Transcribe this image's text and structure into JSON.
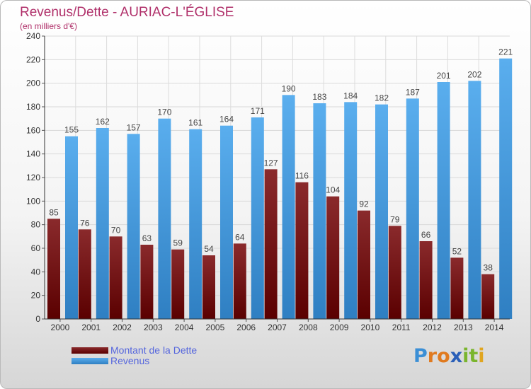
{
  "title": "Revenus/Dette - AURIAC-L'ÉGLISE",
  "subtitle": "(en milliers d'€)",
  "logo": {
    "text": "Proxiti",
    "letters": [
      "P",
      "r",
      "o",
      "x",
      "i",
      "t",
      "i"
    ],
    "colors": [
      "#3b8fd6",
      "#e07a1f",
      "#e07a1f",
      "#2a5fb8",
      "#7ab52e",
      "#7ab52e",
      "#e0a51f"
    ]
  },
  "legend": [
    {
      "label": "Montant de la Dette",
      "color": "#6b0f12"
    },
    {
      "label": "Revenus",
      "color": "#4d9fe0"
    }
  ],
  "chart_data": {
    "type": "bar",
    "title": "Revenus/Dette - AURIAC-L'ÉGLISE",
    "ylabel": "(en milliers d'€)",
    "xlabel": "",
    "categories": [
      "2000",
      "2001",
      "2002",
      "2003",
      "2004",
      "2005",
      "2006",
      "2007",
      "2008",
      "2009",
      "2010",
      "2011",
      "2012",
      "2013",
      "2014"
    ],
    "series": [
      {
        "name": "Montant de la Dette",
        "color": "#6b0f12",
        "values": [
          85,
          76,
          70,
          63,
          59,
          54,
          64,
          127,
          116,
          104,
          92,
          79,
          66,
          52,
          38
        ]
      },
      {
        "name": "Revenus",
        "color": "#4d9fe0",
        "values": [
          155,
          162,
          157,
          170,
          161,
          164,
          171,
          190,
          183,
          184,
          182,
          187,
          201,
          202,
          221
        ]
      }
    ],
    "ylim": [
      0,
      240
    ],
    "yticks": [
      0,
      20,
      40,
      60,
      80,
      100,
      120,
      140,
      160,
      180,
      200,
      220,
      240
    ],
    "grid": true,
    "legend_position": "bottom-left"
  }
}
